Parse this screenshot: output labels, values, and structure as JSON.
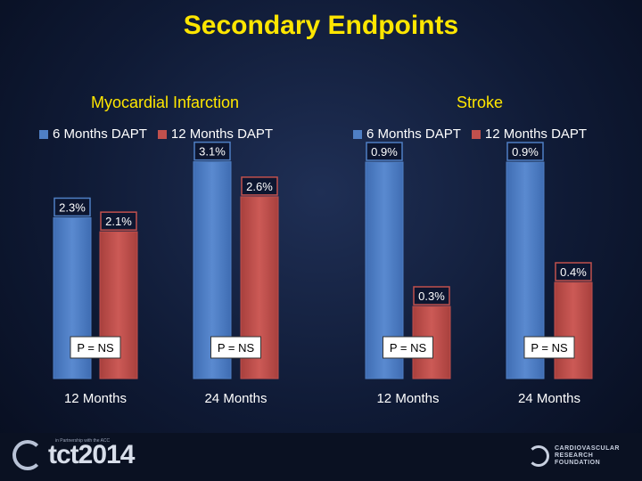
{
  "title": "Secondary Endpoints",
  "legend": {
    "series1": "6 Months DAPT",
    "series2": "12 Months DAPT"
  },
  "colors": {
    "series1": "#4f7fc4",
    "series2": "#c0504d",
    "title": "#ffe600"
  },
  "chart_data": [
    {
      "type": "bar",
      "title": "Myocardial Infarction",
      "categories": [
        "12 Months",
        "24 Months"
      ],
      "series": [
        {
          "name": "6 Months DAPT",
          "values": [
            2.3,
            3.1
          ],
          "labels": [
            "2.3%",
            "3.1%"
          ]
        },
        {
          "name": "12 Months DAPT",
          "values": [
            2.1,
            2.6
          ],
          "labels": [
            "2.1%",
            "2.6%"
          ]
        }
      ],
      "pvalues": [
        "P = NS",
        "P = NS"
      ],
      "ylim": [
        0,
        3.5
      ],
      "legend_position": "top"
    },
    {
      "type": "bar",
      "title": "Stroke",
      "categories": [
        "12 Months",
        "24 Months"
      ],
      "series": [
        {
          "name": "6 Months DAPT",
          "values": [
            0.9,
            0.9
          ],
          "labels": [
            "0.9%",
            "0.9%"
          ]
        },
        {
          "name": "12 Months DAPT",
          "values": [
            0.3,
            0.4
          ],
          "labels": [
            "0.3%",
            "0.4%"
          ]
        }
      ],
      "pvalues": [
        "P = NS",
        "P = NS"
      ],
      "ylim": [
        0,
        1.0
      ],
      "legend_position": "top"
    }
  ],
  "footer": {
    "left_logo": "tct2014",
    "left_logo_small": "in Partnership with the ACC",
    "right_logo_lines": [
      "CARDIOVASCULAR",
      "RESEARCH",
      "FOUNDATION"
    ]
  }
}
